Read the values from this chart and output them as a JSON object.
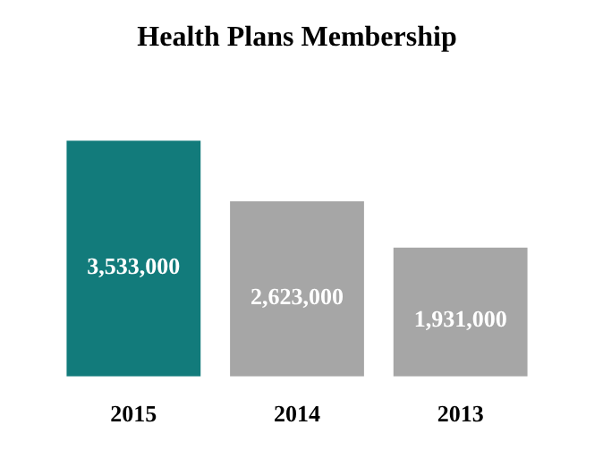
{
  "chart_data": {
    "type": "bar",
    "title": "Health Plans Membership",
    "categories": [
      "2015",
      "2014",
      "2013"
    ],
    "values": [
      3533000,
      2623000,
      1931000
    ],
    "colors": [
      "#127b7b",
      "#a6a6a6",
      "#a6a6a6"
    ],
    "value_labels": [
      "3,533,000",
      "2,623,000",
      "1,931,000"
    ]
  }
}
